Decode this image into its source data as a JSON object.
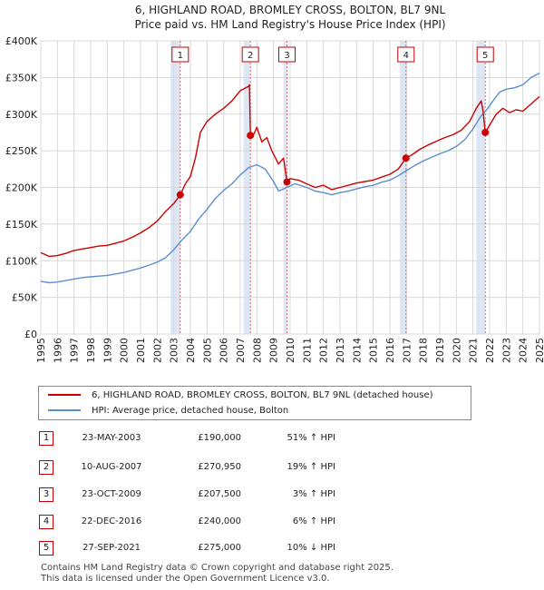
{
  "title_line1": "6, HIGHLAND ROAD, BROMLEY CROSS, BOLTON, BL7 9NL",
  "title_line2": "Price paid vs. HM Land Registry's House Price Index (HPI)",
  "colors": {
    "property": "#cc0000",
    "hpi": "#5b8fcf",
    "shade": "#dde6f5",
    "grid": "#d8d8d8",
    "marker_line": "#e06060"
  },
  "chart_data": {
    "type": "line",
    "xlim": [
      1995,
      2025
    ],
    "ylim": [
      0,
      400000
    ],
    "y_ticks": [
      {
        "value": 0,
        "label": "£0"
      },
      {
        "value": 50000,
        "label": "£50K"
      },
      {
        "value": 100000,
        "label": "£100K"
      },
      {
        "value": 150000,
        "label": "£150K"
      },
      {
        "value": 200000,
        "label": "£200K"
      },
      {
        "value": 250000,
        "label": "£250K"
      },
      {
        "value": 300000,
        "label": "£300K"
      },
      {
        "value": 350000,
        "label": "£350K"
      },
      {
        "value": 400000,
        "label": "£400K"
      }
    ],
    "x_ticks": [
      "1995",
      "1996",
      "1997",
      "1998",
      "1999",
      "2000",
      "2001",
      "2002",
      "2003",
      "2004",
      "2005",
      "2006",
      "2007",
      "2008",
      "2009",
      "2010",
      "2011",
      "2012",
      "2013",
      "2014",
      "2015",
      "2016",
      "2017",
      "2018",
      "2019",
      "2020",
      "2021",
      "2022",
      "2023",
      "2024",
      "2025"
    ],
    "series": [
      {
        "name": "6, HIGHLAND ROAD, BROMLEY CROSS, BOLTON, BL7 9NL (detached house)",
        "color": "#cc0000",
        "points": [
          [
            1995.0,
            111000
          ],
          [
            1995.5,
            106000
          ],
          [
            1996.0,
            107000
          ],
          [
            1996.5,
            110000
          ],
          [
            1997.0,
            114000
          ],
          [
            1997.5,
            116000
          ],
          [
            1998.0,
            118000
          ],
          [
            1998.5,
            120000
          ],
          [
            1999.0,
            121000
          ],
          [
            1999.5,
            124000
          ],
          [
            2000.0,
            127000
          ],
          [
            2000.5,
            132000
          ],
          [
            2001.0,
            138000
          ],
          [
            2001.5,
            145000
          ],
          [
            2002.0,
            154000
          ],
          [
            2002.5,
            167000
          ],
          [
            2003.0,
            178000
          ],
          [
            2003.39,
            190000
          ],
          [
            2003.7,
            205000
          ],
          [
            2004.0,
            215000
          ],
          [
            2004.3,
            240000
          ],
          [
            2004.6,
            275000
          ],
          [
            2005.0,
            290000
          ],
          [
            2005.5,
            300000
          ],
          [
            2006.0,
            308000
          ],
          [
            2006.5,
            318000
          ],
          [
            2007.0,
            332000
          ],
          [
            2007.5,
            338000
          ],
          [
            2007.55,
            340000
          ],
          [
            2007.61,
            270950
          ],
          [
            2007.8,
            272000
          ],
          [
            2008.0,
            282000
          ],
          [
            2008.3,
            262000
          ],
          [
            2008.6,
            268000
          ],
          [
            2008.9,
            250000
          ],
          [
            2009.3,
            232000
          ],
          [
            2009.6,
            240000
          ],
          [
            2009.81,
            207500
          ],
          [
            2010.0,
            212000
          ],
          [
            2010.5,
            210000
          ],
          [
            2011.0,
            205000
          ],
          [
            2011.5,
            200000
          ],
          [
            2012.0,
            203000
          ],
          [
            2012.5,
            197000
          ],
          [
            2013.0,
            200000
          ],
          [
            2013.5,
            203000
          ],
          [
            2014.0,
            206000
          ],
          [
            2014.5,
            208000
          ],
          [
            2015.0,
            210000
          ],
          [
            2015.5,
            214000
          ],
          [
            2016.0,
            218000
          ],
          [
            2016.5,
            225000
          ],
          [
            2016.97,
            240000
          ],
          [
            2017.3,
            244000
          ],
          [
            2017.8,
            252000
          ],
          [
            2018.3,
            258000
          ],
          [
            2018.8,
            263000
          ],
          [
            2019.3,
            268000
          ],
          [
            2019.8,
            272000
          ],
          [
            2020.3,
            278000
          ],
          [
            2020.8,
            290000
          ],
          [
            2021.2,
            308000
          ],
          [
            2021.5,
            318000
          ],
          [
            2021.6,
            305000
          ],
          [
            2021.74,
            275000
          ],
          [
            2022.0,
            285000
          ],
          [
            2022.4,
            300000
          ],
          [
            2022.8,
            308000
          ],
          [
            2023.2,
            302000
          ],
          [
            2023.6,
            306000
          ],
          [
            2024.0,
            304000
          ],
          [
            2024.4,
            312000
          ],
          [
            2024.8,
            320000
          ],
          [
            2025.0,
            324000
          ]
        ]
      },
      {
        "name": "HPI: Average price, detached house, Bolton",
        "color": "#5b8fcf",
        "points": [
          [
            1995.0,
            72000
          ],
          [
            1995.5,
            70000
          ],
          [
            1996.0,
            71000
          ],
          [
            1996.5,
            73000
          ],
          [
            1997.0,
            75000
          ],
          [
            1997.5,
            77000
          ],
          [
            1998.0,
            78000
          ],
          [
            1998.5,
            79000
          ],
          [
            1999.0,
            80000
          ],
          [
            1999.5,
            82000
          ],
          [
            2000.0,
            84000
          ],
          [
            2000.5,
            87000
          ],
          [
            2001.0,
            90000
          ],
          [
            2001.5,
            94000
          ],
          [
            2002.0,
            98000
          ],
          [
            2002.5,
            104000
          ],
          [
            2003.0,
            115000
          ],
          [
            2003.4,
            126000
          ],
          [
            2004.0,
            140000
          ],
          [
            2004.5,
            157000
          ],
          [
            2005.0,
            170000
          ],
          [
            2005.5,
            185000
          ],
          [
            2006.0,
            196000
          ],
          [
            2006.5,
            205000
          ],
          [
            2007.0,
            217000
          ],
          [
            2007.5,
            227000
          ],
          [
            2008.0,
            231000
          ],
          [
            2008.5,
            225000
          ],
          [
            2009.0,
            208000
          ],
          [
            2009.3,
            195000
          ],
          [
            2009.8,
            200000
          ],
          [
            2010.3,
            205000
          ],
          [
            2011.0,
            200000
          ],
          [
            2011.5,
            195000
          ],
          [
            2012.0,
            193000
          ],
          [
            2012.5,
            190000
          ],
          [
            2013.0,
            193000
          ],
          [
            2013.5,
            195000
          ],
          [
            2014.0,
            198000
          ],
          [
            2014.5,
            201000
          ],
          [
            2015.0,
            203000
          ],
          [
            2015.5,
            207000
          ],
          [
            2016.0,
            210000
          ],
          [
            2016.5,
            216000
          ],
          [
            2017.0,
            223000
          ],
          [
            2017.5,
            230000
          ],
          [
            2018.0,
            236000
          ],
          [
            2018.5,
            241000
          ],
          [
            2019.0,
            246000
          ],
          [
            2019.5,
            250000
          ],
          [
            2020.0,
            256000
          ],
          [
            2020.5,
            265000
          ],
          [
            2021.0,
            280000
          ],
          [
            2021.5,
            298000
          ],
          [
            2021.8,
            305000
          ],
          [
            2022.2,
            318000
          ],
          [
            2022.6,
            330000
          ],
          [
            2023.0,
            334000
          ],
          [
            2023.5,
            336000
          ],
          [
            2024.0,
            340000
          ],
          [
            2024.5,
            350000
          ],
          [
            2025.0,
            356000
          ]
        ]
      }
    ],
    "sales": [
      {
        "num": "1",
        "x": 2003.39,
        "price": 190000
      },
      {
        "num": "2",
        "x": 2007.61,
        "price": 270950
      },
      {
        "num": "3",
        "x": 2009.81,
        "price": 207500
      },
      {
        "num": "4",
        "x": 2016.97,
        "price": 240000
      },
      {
        "num": "5",
        "x": 2021.74,
        "price": 275000
      }
    ],
    "shaded_spans": [
      [
        2002.8,
        2003.39
      ],
      [
        2007.2,
        2007.61
      ],
      [
        2009.6,
        2009.81
      ],
      [
        2016.6,
        2016.97
      ],
      [
        2021.2,
        2021.74
      ]
    ]
  },
  "legend": {
    "property_label": "6, HIGHLAND ROAD, BROMLEY CROSS, BOLTON, BL7 9NL (detached house)",
    "hpi_label": "HPI: Average price, detached house, Bolton"
  },
  "transactions": [
    {
      "num": "1",
      "date": "23-MAY-2003",
      "price": "£190,000",
      "hpi": "51% ↑ HPI"
    },
    {
      "num": "2",
      "date": "10-AUG-2007",
      "price": "£270,950",
      "hpi": "19% ↑ HPI"
    },
    {
      "num": "3",
      "date": "23-OCT-2009",
      "price": "£207,500",
      "hpi": "3% ↑ HPI"
    },
    {
      "num": "4",
      "date": "22-DEC-2016",
      "price": "£240,000",
      "hpi": "6% ↑ HPI"
    },
    {
      "num": "5",
      "date": "27-SEP-2021",
      "price": "£275,000",
      "hpi": "10% ↓ HPI"
    }
  ],
  "footer": {
    "line1": "Contains HM Land Registry data © Crown copyright and database right 2025.",
    "line2": "This data is licensed under the Open Government Licence v3.0."
  }
}
